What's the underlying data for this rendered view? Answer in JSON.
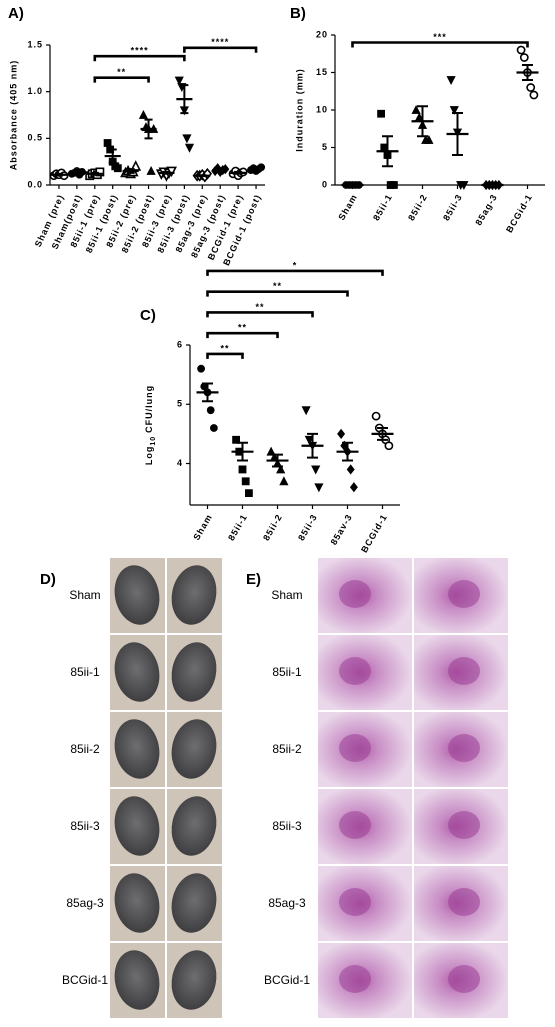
{
  "chart_data": [
    {
      "type": "dot",
      "panel": "A)",
      "y_label": "Absorbance (405 nm)",
      "color": "#000000",
      "categories": [
        "Sham (pre)",
        "Sham(post)",
        "85ii-1 (pre)",
        "85ii-1 (post)",
        "85ii-2 (pre)",
        "85ii-2 (post)",
        "85ii-3 (pre)",
        "85ii-3 (post)",
        "85ag-3 (pre)",
        "85ag-3 (post)",
        "BCGid-1 (pre)",
        "BCGid-1 (post)"
      ],
      "ylim": [
        0,
        1.5
      ],
      "yticks": [
        {
          "value": 0,
          "label": "0.0"
        },
        {
          "value": 0.5,
          "label": "0.5"
        },
        {
          "value": 1,
          "label": "1.0"
        },
        {
          "value": 1.5,
          "label": "1.5"
        }
      ],
      "groups": [
        {
          "marker": "circle-open",
          "values": [
            0.1,
            0.12,
            0.11,
            0.13,
            0.1
          ],
          "mean": 0.11,
          "sem": 0.01
        },
        {
          "marker": "circle",
          "values": [
            0.12,
            0.13,
            0.15,
            0.11,
            0.14
          ],
          "mean": 0.13,
          "sem": 0.01
        },
        {
          "marker": "square-open",
          "values": [
            0.1,
            0.12,
            0.13,
            0.11,
            0.14
          ],
          "mean": 0.12,
          "sem": 0.01
        },
        {
          "marker": "square",
          "values": [
            0.45,
            0.38,
            0.25,
            0.2,
            0.18
          ],
          "mean": 0.31,
          "sem": 0.07
        },
        {
          "marker": "triangle-open",
          "values": [
            0.13,
            0.15,
            0.12,
            0.14,
            0.2
          ],
          "mean": 0.15,
          "sem": 0.02
        },
        {
          "marker": "triangle",
          "values": [
            0.75,
            0.62,
            0.6,
            0.15,
            0.6
          ],
          "mean": 0.6,
          "sem": 0.1
        },
        {
          "marker": "triangle-down-open",
          "values": [
            0.12,
            0.14,
            0.1,
            0.13,
            0.15
          ],
          "mean": 0.13,
          "sem": 0.01
        },
        {
          "marker": "triangle-down",
          "values": [
            1.12,
            1.05,
            0.8,
            0.5,
            0.4
          ],
          "mean": 0.92,
          "sem": 0.15
        },
        {
          "marker": "diamond-open",
          "values": [
            0.1,
            0.1,
            0.11,
            0.09,
            0.12
          ],
          "mean": 0.1,
          "sem": 0.005
        },
        {
          "marker": "diamond",
          "values": [
            0.15,
            0.18,
            0.14,
            0.16,
            0.17
          ],
          "mean": 0.16,
          "sem": 0.01
        },
        {
          "marker": "circle-open",
          "values": [
            0.12,
            0.15,
            0.1,
            0.13,
            0.14
          ],
          "mean": 0.13,
          "sem": 0.01
        },
        {
          "marker": "circle",
          "values": [
            0.16,
            0.18,
            0.15,
            0.17,
            0.19
          ],
          "mean": 0.17,
          "sem": 0.01
        }
      ],
      "brackets": [
        {
          "from": 2,
          "to": 5,
          "y": 1.15,
          "label": "**"
        },
        {
          "from": 2,
          "to": 7,
          "y": 1.38,
          "label": "****"
        },
        {
          "from": 7,
          "to": 11,
          "y": 1.47,
          "label": "****"
        }
      ]
    },
    {
      "type": "dot",
      "panel": "B)",
      "y_label": "Induration (mm)",
      "color": "#000000",
      "categories": [
        "Sham",
        "85ii-1",
        "85ii-2",
        "85ii-3",
        "85ag-3",
        "BCGid-1"
      ],
      "ylim": [
        0,
        20
      ],
      "yticks": [
        0,
        5,
        10,
        15,
        20
      ],
      "groups": [
        {
          "marker": "circle",
          "values": [
            0,
            0,
            0,
            0,
            0
          ],
          "mean": 0,
          "sem": 0
        },
        {
          "marker": "square",
          "values": [
            9.5,
            5,
            4,
            0,
            0
          ],
          "mean": 4.5,
          "sem": 2
        },
        {
          "marker": "triangle",
          "values": [
            10,
            9,
            8,
            6,
            6
          ],
          "mean": 8.5,
          "sem": 2
        },
        {
          "marker": "triangle-down",
          "values": [
            14,
            10,
            7,
            0,
            0
          ],
          "mean": 6.8,
          "sem": 2.8
        },
        {
          "marker": "diamond",
          "values": [
            0,
            0,
            0,
            0,
            0
          ],
          "mean": 0,
          "sem": 0
        },
        {
          "marker": "circle-open",
          "values": [
            18,
            17,
            15,
            13,
            12
          ],
          "mean": 15,
          "sem": 1
        }
      ],
      "brackets": [
        {
          "from": 0,
          "to": 5,
          "y": 19,
          "label": "***"
        }
      ]
    },
    {
      "type": "dot",
      "panel": "C)",
      "y_label": [
        "Log",
        "10",
        "CFU/lung"
      ],
      "color": "#000000",
      "categories": [
        "Sham",
        "85ii-1",
        "85ii-2",
        "85ii-3",
        "85av-3",
        "BCGid-1"
      ],
      "ylim": [
        3.3,
        6
      ],
      "yticks": [
        4,
        5,
        6
      ],
      "groups": [
        {
          "marker": "circle",
          "values": [
            5.6,
            5.3,
            5.2,
            4.9,
            4.6
          ],
          "mean": 5.2,
          "sem": 0.15
        },
        {
          "marker": "square",
          "values": [
            4.4,
            4.2,
            3.9,
            3.7,
            3.5
          ],
          "mean": 4.2,
          "sem": 0.15
        },
        {
          "marker": "triangle",
          "values": [
            4.2,
            4.1,
            4,
            3.9,
            3.7
          ],
          "mean": 4.05,
          "sem": 0.1
        },
        {
          "marker": "triangle-down",
          "values": [
            4.9,
            4.4,
            4.3,
            3.9,
            3.6
          ],
          "mean": 4.3,
          "sem": 0.2
        },
        {
          "marker": "diamond",
          "values": [
            4.5,
            4.3,
            4.2,
            3.9,
            3.6
          ],
          "mean": 4.2,
          "sem": 0.15
        },
        {
          "marker": "circle-open",
          "values": [
            4.8,
            4.6,
            4.5,
            4.4,
            4.3
          ],
          "mean": 4.5,
          "sem": 0.1
        }
      ],
      "brackets": [
        {
          "from": 0,
          "to": 1,
          "y": 5.85,
          "label": "**"
        },
        {
          "from": 0,
          "to": 2,
          "y": 6.2,
          "label": "**"
        },
        {
          "from": 0,
          "to": 3,
          "y": 6.55,
          "label": "**"
        },
        {
          "from": 0,
          "to": 4,
          "y": 6.9,
          "label": "**"
        },
        {
          "from": 0,
          "to": 5,
          "y": 7.25,
          "label": "*"
        }
      ]
    }
  ],
  "photos": {
    "panel": "D)",
    "rows": [
      "Sham",
      "85ii-1",
      "85ii-2",
      "85ii-3",
      "85ag-3",
      "BCGid-1"
    ]
  },
  "histology": {
    "panel": "E)",
    "rows": [
      "Sham",
      "85ii-1",
      "85ii-2",
      "85ii-3",
      "85ag-3",
      "BCGid-1"
    ]
  }
}
